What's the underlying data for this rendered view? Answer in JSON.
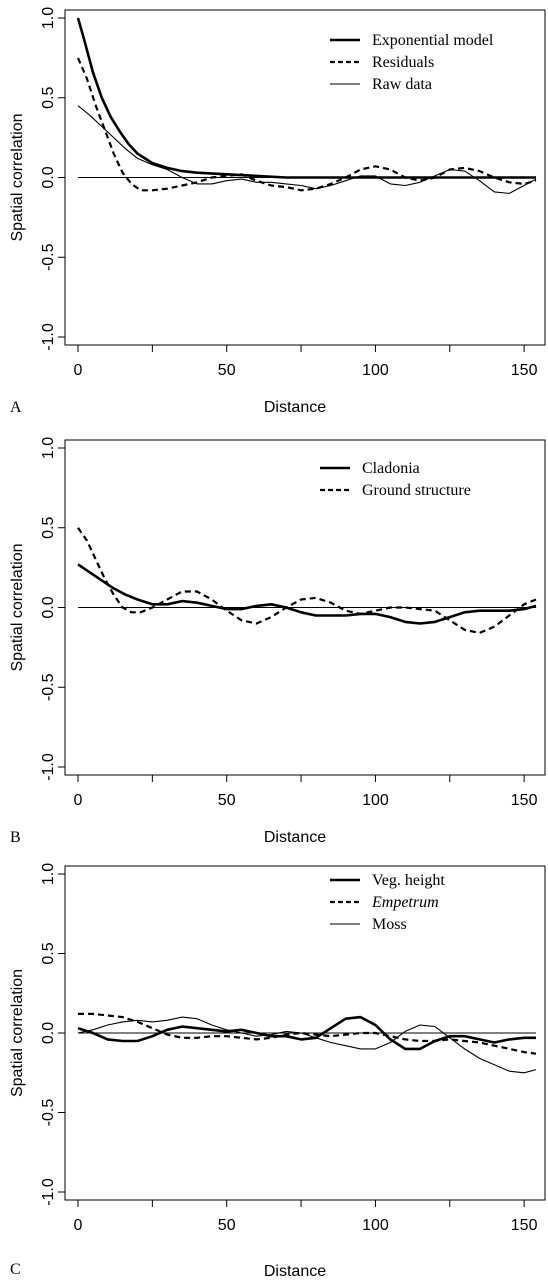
{
  "figure": {
    "panels": [
      "A",
      "B",
      "C"
    ]
  },
  "chart_data": [
    {
      "type": "line",
      "panel": "A",
      "title": "",
      "xlabel": "Distance",
      "ylabel": "Spatial correlation",
      "xlim": [
        0,
        155
      ],
      "ylim": [
        -1.0,
        1.0
      ],
      "xticks": [
        "0",
        "50",
        "100",
        "150"
      ],
      "yticks": [
        "1.0",
        "0.5",
        "0.0",
        "-0.5",
        "-1.0"
      ],
      "reference_line_y": 0,
      "grid": false,
      "legend_position": "top-right",
      "series": [
        {
          "name": "Exponential model",
          "style": "thick-solid",
          "points": [
            [
              0,
              1.0
            ],
            [
              2,
              0.87
            ],
            [
              5,
              0.66
            ],
            [
              8,
              0.5
            ],
            [
              11,
              0.38
            ],
            [
              14,
              0.29
            ],
            [
              17,
              0.21
            ],
            [
              20,
              0.15
            ],
            [
              25,
              0.09
            ],
            [
              30,
              0.06
            ],
            [
              35,
              0.04
            ],
            [
              40,
              0.03
            ],
            [
              50,
              0.02
            ],
            [
              60,
              0.01
            ],
            [
              70,
              0.0
            ],
            [
              80,
              0.0
            ],
            [
              90,
              0.0
            ],
            [
              100,
              0.0
            ],
            [
              110,
              0.0
            ],
            [
              120,
              0.0
            ],
            [
              130,
              0.0
            ],
            [
              140,
              0.0
            ],
            [
              154,
              0.0
            ]
          ]
        },
        {
          "name": "Residuals",
          "style": "dashed",
          "points": [
            [
              0,
              0.75
            ],
            [
              3,
              0.62
            ],
            [
              6,
              0.45
            ],
            [
              9,
              0.3
            ],
            [
              12,
              0.15
            ],
            [
              15,
              0.03
            ],
            [
              18,
              -0.04
            ],
            [
              21,
              -0.08
            ],
            [
              25,
              -0.08
            ],
            [
              30,
              -0.07
            ],
            [
              35,
              -0.05
            ],
            [
              40,
              -0.03
            ],
            [
              45,
              0.0
            ],
            [
              50,
              0.01
            ],
            [
              55,
              0.02
            ],
            [
              60,
              -0.02
            ],
            [
              65,
              -0.05
            ],
            [
              70,
              -0.06
            ],
            [
              75,
              -0.08
            ],
            [
              80,
              -0.07
            ],
            [
              85,
              -0.04
            ],
            [
              90,
              0.0
            ],
            [
              95,
              0.05
            ],
            [
              100,
              0.07
            ],
            [
              105,
              0.05
            ],
            [
              110,
              0.0
            ],
            [
              115,
              -0.02
            ],
            [
              120,
              0.0
            ],
            [
              125,
              0.05
            ],
            [
              130,
              0.06
            ],
            [
              135,
              0.04
            ],
            [
              140,
              0.0
            ],
            [
              145,
              -0.03
            ],
            [
              150,
              -0.04
            ],
            [
              154,
              -0.02
            ]
          ]
        },
        {
          "name": "Raw data",
          "style": "thin-solid",
          "points": [
            [
              0,
              0.45
            ],
            [
              4,
              0.39
            ],
            [
              8,
              0.32
            ],
            [
              12,
              0.25
            ],
            [
              16,
              0.18
            ],
            [
              20,
              0.12
            ],
            [
              25,
              0.08
            ],
            [
              30,
              0.05
            ],
            [
              35,
              0.0
            ],
            [
              40,
              -0.04
            ],
            [
              45,
              -0.04
            ],
            [
              50,
              -0.02
            ],
            [
              55,
              -0.01
            ],
            [
              60,
              -0.03
            ],
            [
              65,
              -0.03
            ],
            [
              70,
              -0.04
            ],
            [
              75,
              -0.05
            ],
            [
              80,
              -0.07
            ],
            [
              85,
              -0.05
            ],
            [
              90,
              -0.02
            ],
            [
              95,
              0.01
            ],
            [
              100,
              0.01
            ],
            [
              105,
              -0.04
            ],
            [
              110,
              -0.05
            ],
            [
              115,
              -0.03
            ],
            [
              120,
              0.01
            ],
            [
              125,
              0.05
            ],
            [
              130,
              0.04
            ],
            [
              135,
              -0.02
            ],
            [
              140,
              -0.09
            ],
            [
              145,
              -0.1
            ],
            [
              150,
              -0.05
            ],
            [
              154,
              -0.01
            ]
          ]
        }
      ]
    },
    {
      "type": "line",
      "panel": "B",
      "title": "",
      "xlabel": "Distance",
      "ylabel": "Spatial correlation",
      "xlim": [
        0,
        155
      ],
      "ylim": [
        -1.0,
        1.0
      ],
      "xticks": [
        "0",
        "50",
        "100",
        "150"
      ],
      "yticks": [
        "1.0",
        "0.5",
        "0.0",
        "-0.5",
        "-1.0"
      ],
      "reference_line_y": 0,
      "grid": false,
      "legend_position": "top-right",
      "series": [
        {
          "name": "Cladonia",
          "style": "thick-solid",
          "points": [
            [
              0,
              0.27
            ],
            [
              4,
              0.22
            ],
            [
              8,
              0.17
            ],
            [
              12,
              0.12
            ],
            [
              16,
              0.08
            ],
            [
              20,
              0.05
            ],
            [
              25,
              0.02
            ],
            [
              30,
              0.02
            ],
            [
              35,
              0.04
            ],
            [
              40,
              0.03
            ],
            [
              45,
              0.01
            ],
            [
              50,
              -0.01
            ],
            [
              55,
              -0.01
            ],
            [
              60,
              0.01
            ],
            [
              65,
              0.02
            ],
            [
              70,
              0.0
            ],
            [
              75,
              -0.03
            ],
            [
              80,
              -0.05
            ],
            [
              85,
              -0.05
            ],
            [
              90,
              -0.05
            ],
            [
              95,
              -0.04
            ],
            [
              100,
              -0.04
            ],
            [
              105,
              -0.06
            ],
            [
              110,
              -0.09
            ],
            [
              115,
              -0.1
            ],
            [
              120,
              -0.09
            ],
            [
              125,
              -0.06
            ],
            [
              130,
              -0.03
            ],
            [
              135,
              -0.02
            ],
            [
              140,
              -0.02
            ],
            [
              145,
              -0.02
            ],
            [
              150,
              -0.01
            ],
            [
              154,
              0.01
            ]
          ]
        },
        {
          "name": "Ground structure",
          "style": "dashed",
          "points": [
            [
              0,
              0.5
            ],
            [
              3,
              0.42
            ],
            [
              6,
              0.3
            ],
            [
              9,
              0.18
            ],
            [
              12,
              0.08
            ],
            [
              15,
              0.0
            ],
            [
              18,
              -0.03
            ],
            [
              21,
              -0.03
            ],
            [
              25,
              0.0
            ],
            [
              30,
              0.05
            ],
            [
              35,
              0.1
            ],
            [
              40,
              0.1
            ],
            [
              45,
              0.05
            ],
            [
              50,
              -0.02
            ],
            [
              55,
              -0.08
            ],
            [
              60,
              -0.1
            ],
            [
              65,
              -0.06
            ],
            [
              70,
              0.0
            ],
            [
              75,
              0.05
            ],
            [
              80,
              0.06
            ],
            [
              85,
              0.03
            ],
            [
              90,
              -0.02
            ],
            [
              95,
              -0.04
            ],
            [
              100,
              -0.02
            ],
            [
              105,
              0.0
            ],
            [
              110,
              0.0
            ],
            [
              115,
              -0.01
            ],
            [
              120,
              -0.02
            ],
            [
              125,
              -0.08
            ],
            [
              130,
              -0.14
            ],
            [
              135,
              -0.16
            ],
            [
              140,
              -0.12
            ],
            [
              145,
              -0.05
            ],
            [
              150,
              0.02
            ],
            [
              154,
              0.05
            ]
          ]
        }
      ]
    },
    {
      "type": "line",
      "panel": "C",
      "title": "",
      "xlabel": "Distance",
      "ylabel": "Spatial correlation",
      "xlim": [
        0,
        155
      ],
      "ylim": [
        -1.0,
        1.0
      ],
      "xticks": [
        "0",
        "50",
        "100",
        "150"
      ],
      "yticks": [
        "1.0",
        "0.5",
        "0.0",
        "-0.5",
        "-1.0"
      ],
      "reference_line_y": 0,
      "grid": false,
      "legend_position": "top-right",
      "series": [
        {
          "name": "Veg. height",
          "style": "thick-solid",
          "italic": false,
          "points": [
            [
              0,
              0.03
            ],
            [
              5,
              0.0
            ],
            [
              10,
              -0.04
            ],
            [
              15,
              -0.05
            ],
            [
              20,
              -0.05
            ],
            [
              25,
              -0.02
            ],
            [
              30,
              0.02
            ],
            [
              35,
              0.04
            ],
            [
              40,
              0.03
            ],
            [
              45,
              0.02
            ],
            [
              50,
              0.01
            ],
            [
              55,
              0.02
            ],
            [
              60,
              0.0
            ],
            [
              65,
              -0.02
            ],
            [
              70,
              -0.02
            ],
            [
              75,
              -0.04
            ],
            [
              80,
              -0.03
            ],
            [
              85,
              0.03
            ],
            [
              90,
              0.09
            ],
            [
              95,
              0.1
            ],
            [
              100,
              0.05
            ],
            [
              105,
              -0.04
            ],
            [
              110,
              -0.1
            ],
            [
              115,
              -0.1
            ],
            [
              120,
              -0.05
            ],
            [
              125,
              -0.02
            ],
            [
              130,
              -0.02
            ],
            [
              135,
              -0.04
            ],
            [
              140,
              -0.06
            ],
            [
              145,
              -0.04
            ],
            [
              150,
              -0.03
            ],
            [
              154,
              -0.03
            ]
          ]
        },
        {
          "name": "Empetrum",
          "style": "dashed",
          "italic": true,
          "points": [
            [
              0,
              0.12
            ],
            [
              5,
              0.12
            ],
            [
              10,
              0.11
            ],
            [
              15,
              0.1
            ],
            [
              20,
              0.07
            ],
            [
              25,
              0.03
            ],
            [
              30,
              -0.01
            ],
            [
              35,
              -0.03
            ],
            [
              40,
              -0.03
            ],
            [
              45,
              -0.02
            ],
            [
              50,
              -0.02
            ],
            [
              55,
              -0.03
            ],
            [
              60,
              -0.04
            ],
            [
              65,
              -0.03
            ],
            [
              70,
              -0.01
            ],
            [
              75,
              0.0
            ],
            [
              80,
              -0.01
            ],
            [
              85,
              -0.02
            ],
            [
              90,
              -0.01
            ],
            [
              95,
              0.0
            ],
            [
              100,
              0.0
            ],
            [
              105,
              -0.02
            ],
            [
              110,
              -0.04
            ],
            [
              115,
              -0.05
            ],
            [
              120,
              -0.05
            ],
            [
              125,
              -0.04
            ],
            [
              130,
              -0.05
            ],
            [
              135,
              -0.06
            ],
            [
              140,
              -0.08
            ],
            [
              145,
              -0.1
            ],
            [
              150,
              -0.12
            ],
            [
              154,
              -0.13
            ]
          ]
        },
        {
          "name": "Moss",
          "style": "thin-solid",
          "italic": false,
          "points": [
            [
              0,
              0.0
            ],
            [
              5,
              0.02
            ],
            [
              10,
              0.05
            ],
            [
              15,
              0.07
            ],
            [
              20,
              0.08
            ],
            [
              25,
              0.07
            ],
            [
              30,
              0.08
            ],
            [
              35,
              0.1
            ],
            [
              40,
              0.09
            ],
            [
              45,
              0.05
            ],
            [
              50,
              0.02
            ],
            [
              55,
              0.0
            ],
            [
              60,
              -0.02
            ],
            [
              65,
              -0.01
            ],
            [
              70,
              0.01
            ],
            [
              75,
              0.0
            ],
            [
              80,
              -0.03
            ],
            [
              85,
              -0.06
            ],
            [
              90,
              -0.08
            ],
            [
              95,
              -0.1
            ],
            [
              100,
              -0.1
            ],
            [
              105,
              -0.06
            ],
            [
              110,
              0.01
            ],
            [
              115,
              0.05
            ],
            [
              120,
              0.04
            ],
            [
              125,
              -0.03
            ],
            [
              130,
              -0.1
            ],
            [
              135,
              -0.16
            ],
            [
              140,
              -0.2
            ],
            [
              145,
              -0.24
            ],
            [
              150,
              -0.25
            ],
            [
              154,
              -0.23
            ]
          ]
        }
      ]
    }
  ]
}
